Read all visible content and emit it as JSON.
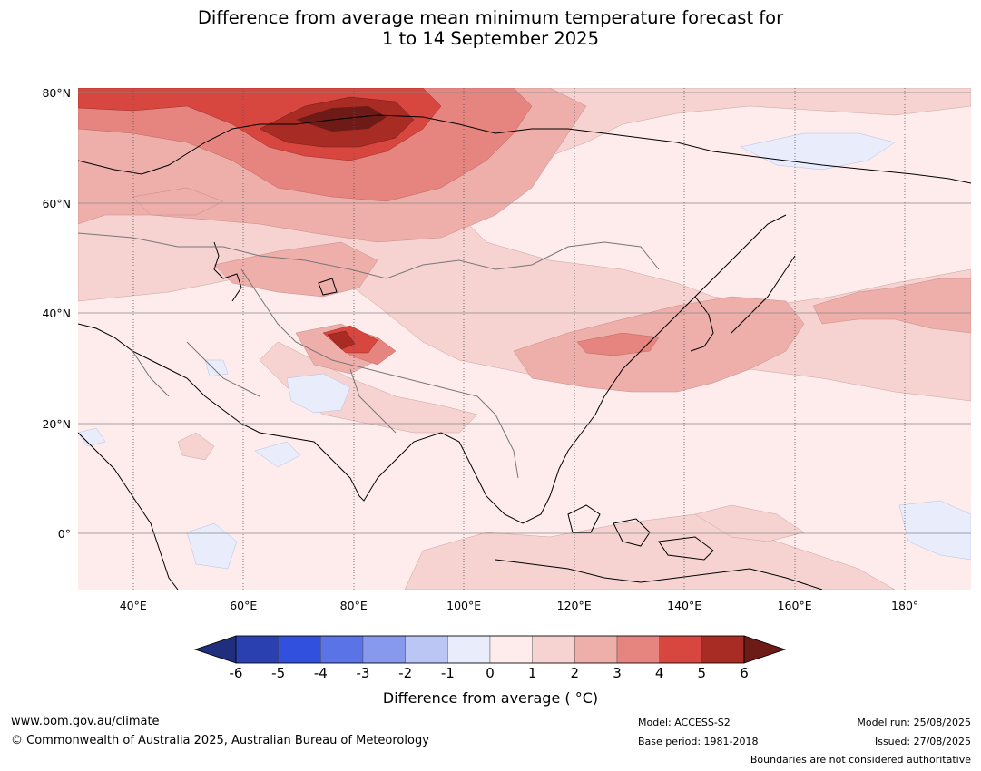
{
  "title_line1": "Difference from average mean minimum temperature forecast for",
  "title_line2": "1 to 14 September 2025",
  "map": {
    "lat_labels": [
      {
        "text": "80°N",
        "value": 80
      },
      {
        "text": "60°N",
        "value": 60
      },
      {
        "text": "40°N",
        "value": 40
      },
      {
        "text": "20°N",
        "value": 20
      },
      {
        "text": "0°",
        "value": 0
      }
    ],
    "lon_labels": [
      {
        "text": "40°E",
        "value": 40
      },
      {
        "text": "60°E",
        "value": 60
      },
      {
        "text": "80°E",
        "value": 80
      },
      {
        "text": "100°E",
        "value": 100
      },
      {
        "text": "120°E",
        "value": 120
      },
      {
        "text": "140°E",
        "value": 140
      },
      {
        "text": "160°E",
        "value": 160
      },
      {
        "text": "180°",
        "value": 180
      }
    ],
    "lon_range": [
      30,
      192
    ],
    "lat_range": [
      -10,
      81
    ]
  },
  "colorbar": {
    "ticks": [
      "-6",
      "-5",
      "-4",
      "-3",
      "-2",
      "-1",
      "0",
      "1",
      "2",
      "3",
      "4",
      "5",
      "6"
    ],
    "colors": [
      "#1f2f7e",
      "#2a3fb0",
      "#3050dd",
      "#5a73e6",
      "#8799ec",
      "#bcc6f4",
      "#e8ecfb",
      "#fdeceb",
      "#f6d3d1",
      "#eeaeaa",
      "#e6847f",
      "#d8473f",
      "#a82b24",
      "#6e1a17"
    ],
    "label": "Difference from average ( °C)"
  },
  "footer": {
    "website": "www.bom.gov.au/climate",
    "copyright": "© Commonwealth of Australia 2025, Australian Bureau of Meteorology",
    "model": "Model: ACCESS-S2",
    "base_period": "Base period: 1981-2018",
    "model_run": "Model run: 25/08/2025",
    "issued": "Issued: 27/08/2025",
    "disclaimer": "Boundaries are not considered authoritative"
  }
}
